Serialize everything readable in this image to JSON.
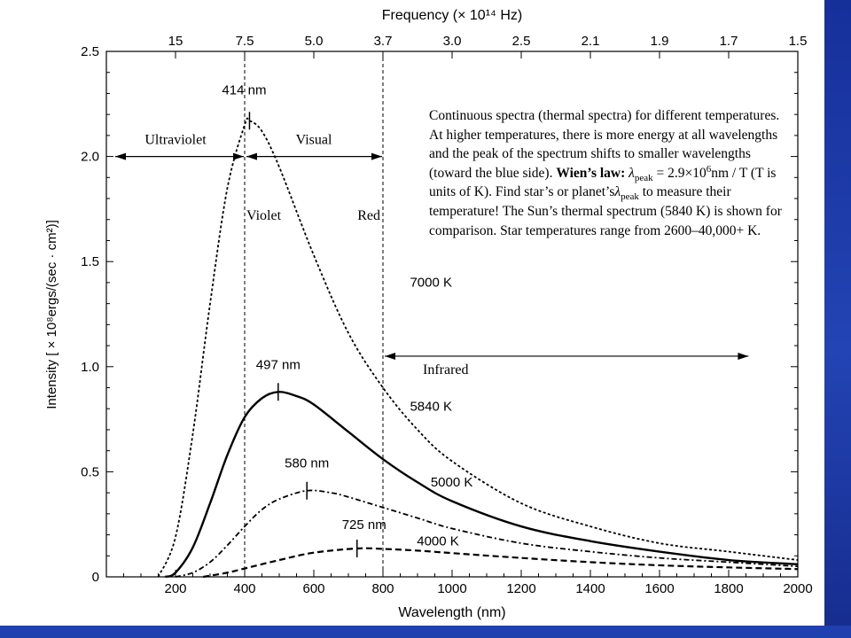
{
  "colors": {
    "slide_background": "#1e3aa0",
    "panel_background": "#ffffff",
    "ink": "#000000"
  },
  "chart_data": {
    "type": "line",
    "xlabel": "Wavelength (nm)",
    "ylabel": "Intensity [ × 10⁸ergs/(sec · cm²)]",
    "top_axis_label": "Frequency (× 10¹⁴ Hz)",
    "xlim": [
      0,
      2000
    ],
    "ylim": [
      0,
      2.5
    ],
    "x_ticks": [
      "200",
      "400",
      "600",
      "800",
      "1000",
      "1200",
      "1400",
      "1600",
      "1800",
      "2000"
    ],
    "y_ticks": [
      "0",
      "0.5",
      "1.0",
      "1.5",
      "2.0",
      "2.5"
    ],
    "top_ticks": [
      {
        "label": "15",
        "wavelength": 200
      },
      {
        "label": "7.5",
        "wavelength": 400
      },
      {
        "label": "5.0",
        "wavelength": 600
      },
      {
        "label": "3.7",
        "wavelength": 800
      },
      {
        "label": "3.0",
        "wavelength": 1000
      },
      {
        "label": "2.5",
        "wavelength": 1200
      },
      {
        "label": "2.1",
        "wavelength": 1400
      },
      {
        "label": "1.9",
        "wavelength": 1600
      },
      {
        "label": "1.7",
        "wavelength": 1800
      },
      {
        "label": "1.5",
        "wavelength": 2000
      }
    ],
    "grid": false,
    "series": [
      {
        "label": "7000 K",
        "temperature": 7000,
        "style": "dotted",
        "peak_wavelength": 414,
        "peak_label": "414 nm",
        "peak_intensity": 2.17,
        "points": [
          [
            150,
            0
          ],
          [
            200,
            0.19
          ],
          [
            250,
            0.68
          ],
          [
            300,
            1.3
          ],
          [
            350,
            1.85
          ],
          [
            400,
            2.15
          ],
          [
            414,
            2.17
          ],
          [
            450,
            2.12
          ],
          [
            500,
            1.95
          ],
          [
            600,
            1.53
          ],
          [
            700,
            1.16
          ],
          [
            800,
            0.9
          ],
          [
            900,
            0.7
          ],
          [
            1000,
            0.55
          ],
          [
            1200,
            0.35
          ],
          [
            1400,
            0.24
          ],
          [
            1600,
            0.16
          ],
          [
            1800,
            0.12
          ],
          [
            2000,
            0.08
          ]
        ]
      },
      {
        "label": "5840 K",
        "temperature": 5840,
        "style": "solid",
        "peak_wavelength": 497,
        "peak_label": "497 nm",
        "peak_intensity": 0.88,
        "points": [
          [
            170,
            0
          ],
          [
            200,
            0.02
          ],
          [
            250,
            0.14
          ],
          [
            300,
            0.35
          ],
          [
            350,
            0.58
          ],
          [
            400,
            0.76
          ],
          [
            450,
            0.85
          ],
          [
            497,
            0.88
          ],
          [
            550,
            0.86
          ],
          [
            600,
            0.82
          ],
          [
            700,
            0.69
          ],
          [
            800,
            0.56
          ],
          [
            900,
            0.45
          ],
          [
            1000,
            0.36
          ],
          [
            1200,
            0.24
          ],
          [
            1400,
            0.17
          ],
          [
            1600,
            0.12
          ],
          [
            1800,
            0.08
          ],
          [
            2000,
            0.06
          ]
        ]
      },
      {
        "label": "5000 K",
        "temperature": 5000,
        "style": "dash-dot",
        "peak_wavelength": 580,
        "peak_label": "580 nm",
        "peak_intensity": 0.41,
        "points": [
          [
            200,
            0
          ],
          [
            250,
            0.02
          ],
          [
            300,
            0.07
          ],
          [
            350,
            0.15
          ],
          [
            400,
            0.24
          ],
          [
            450,
            0.32
          ],
          [
            500,
            0.37
          ],
          [
            580,
            0.41
          ],
          [
            650,
            0.4
          ],
          [
            700,
            0.38
          ],
          [
            800,
            0.33
          ],
          [
            900,
            0.28
          ],
          [
            1000,
            0.23
          ],
          [
            1200,
            0.16
          ],
          [
            1400,
            0.12
          ],
          [
            1600,
            0.09
          ],
          [
            1800,
            0.07
          ],
          [
            2000,
            0.05
          ]
        ]
      },
      {
        "label": "4000 K",
        "temperature": 4000,
        "style": "dashed",
        "peak_wavelength": 725,
        "peak_label": "725 nm",
        "peak_intensity": 0.135,
        "points": [
          [
            280,
            0
          ],
          [
            350,
            0.02
          ],
          [
            400,
            0.04
          ],
          [
            500,
            0.08
          ],
          [
            600,
            0.115
          ],
          [
            725,
            0.135
          ],
          [
            800,
            0.133
          ],
          [
            900,
            0.125
          ],
          [
            1000,
            0.113
          ],
          [
            1200,
            0.09
          ],
          [
            1400,
            0.07
          ],
          [
            1600,
            0.055
          ],
          [
            1800,
            0.045
          ],
          [
            2000,
            0.037
          ]
        ]
      }
    ],
    "region_markers": [
      {
        "label": "Ultraviolet",
        "from": 0,
        "to": 400,
        "y": 2.0
      },
      {
        "label": "Visual",
        "from": 400,
        "to": 800,
        "y": 2.0
      },
      {
        "label": "Infrared",
        "from": 800,
        "to": 1860,
        "y": 1.05
      }
    ],
    "boundary_lines": [
      {
        "wavelength": 400,
        "label": "Violet"
      },
      {
        "wavelength": 800,
        "label": "Red"
      }
    ]
  },
  "annotation": {
    "line1": "Continuous spectra (thermal spectra) for different temperatures. At higher temperatures, there is more energy at all wavelengths and the peak of the spectrum shifts to smaller wavelengths (toward the blue side).",
    "wien_label": "Wien’s law:",
    "lambda": "λ",
    "peak_sub": "peak",
    "formula_a": "= 2.9×10",
    "formula_exp": "6",
    "formula_b": "nm / T",
    "line2": "(T is units of K). Find star’s or planet’s",
    "line3": "to measure their temperature! The Sun’s thermal spectrum (5840 K) is shown for comparison. Star temperatures range from 2600–40,000+ K."
  }
}
